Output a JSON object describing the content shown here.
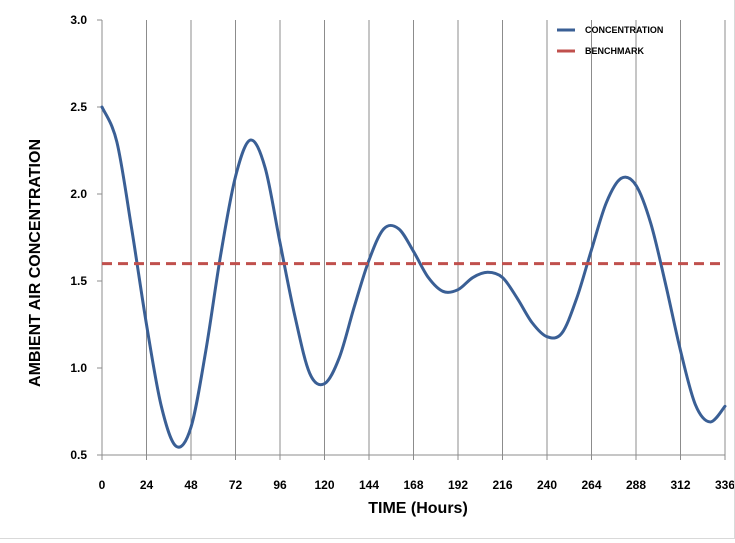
{
  "chart_data": {
    "type": "line",
    "title": "",
    "xlabel": "TIME (Hours)",
    "ylabel": "AMBIENT AIR CONCENTRATION",
    "xlim": [
      0,
      336
    ],
    "ylim": [
      0.5,
      3.0
    ],
    "x_ticks": [
      0,
      24,
      48,
      72,
      96,
      120,
      144,
      168,
      192,
      216,
      240,
      264,
      288,
      312,
      336
    ],
    "y_ticks": [
      0.5,
      1.0,
      1.5,
      2.0,
      2.5,
      3.0
    ],
    "y_tick_labels": [
      "0.5",
      "1.0",
      "1.5",
      "2.0",
      "2.5",
      "3.0"
    ],
    "grid": "vertical",
    "legend_position": "top-right",
    "series": [
      {
        "name": "CONCENTRATION",
        "color": "#3A5F95",
        "style": "solid",
        "x": [
          0,
          8,
          16,
          24,
          32,
          40,
          48,
          56,
          64,
          72,
          80,
          88,
          96,
          104,
          112,
          120,
          128,
          136,
          144,
          152,
          160,
          168,
          176,
          184,
          192,
          200,
          208,
          216,
          224,
          232,
          240,
          248,
          256,
          264,
          272,
          280,
          288,
          296,
          304,
          312,
          320,
          328,
          336
        ],
        "y": [
          2.5,
          2.3,
          1.8,
          1.25,
          0.78,
          0.55,
          0.66,
          1.1,
          1.65,
          2.1,
          2.31,
          2.15,
          1.72,
          1.3,
          0.97,
          0.91,
          1.06,
          1.35,
          1.62,
          1.8,
          1.8,
          1.67,
          1.52,
          1.44,
          1.45,
          1.52,
          1.55,
          1.52,
          1.4,
          1.26,
          1.18,
          1.2,
          1.4,
          1.68,
          1.95,
          2.09,
          2.05,
          1.83,
          1.48,
          1.1,
          0.79,
          0.69,
          0.78
        ]
      },
      {
        "name": "BENCHMARK",
        "color": "#C0504D",
        "style": "dashed",
        "x": [
          0,
          336
        ],
        "y": [
          1.6,
          1.6
        ]
      }
    ]
  }
}
